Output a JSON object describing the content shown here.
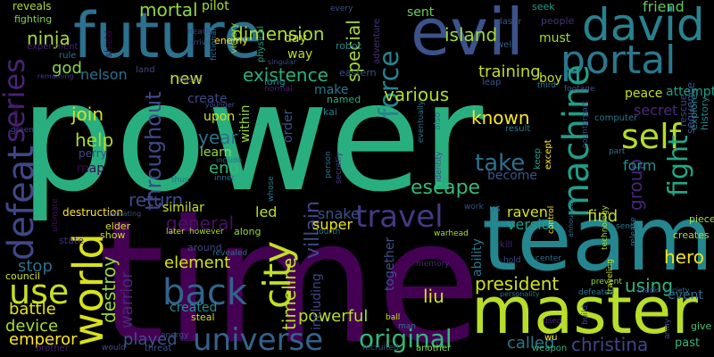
{
  "words": [
    {
      "text": "power",
      "color": "#29af7f"
    },
    {
      "text": "time",
      "color": "#440154"
    },
    {
      "text": "future",
      "color": "#2c718e"
    },
    {
      "text": "evil",
      "color": "#3b528b"
    },
    {
      "text": "team",
      "color": "#24868e"
    },
    {
      "text": "master",
      "color": "#b8de29"
    },
    {
      "text": "david",
      "color": "#26828e"
    },
    {
      "text": "portal",
      "color": "#2a788e"
    },
    {
      "text": "series",
      "color": "#482374"
    },
    {
      "text": "defeat",
      "color": "#404688"
    },
    {
      "text": "world",
      "color": "#d8e219"
    },
    {
      "text": "travel",
      "color": "#443983"
    },
    {
      "text": "back",
      "color": "#33638d"
    },
    {
      "text": "universe",
      "color": "#33638d"
    },
    {
      "text": "city",
      "color": "#c2df23"
    },
    {
      "text": "use",
      "color": "#c8e020"
    },
    {
      "text": "machine",
      "color": "#1f9e89"
    },
    {
      "text": "self",
      "color": "#b2dd2d"
    },
    {
      "text": "fight",
      "color": "#22a884"
    },
    {
      "text": "force",
      "color": "#26828e"
    },
    {
      "text": "original",
      "color": "#32b67a"
    },
    {
      "text": "take",
      "color": "#2c718e"
    },
    {
      "text": "mortal",
      "color": "#8fd744"
    },
    {
      "text": "dimension",
      "color": "#a5db36"
    },
    {
      "text": "existence",
      "color": "#29af7f"
    },
    {
      "text": "island",
      "color": "#a0da39"
    },
    {
      "text": "special",
      "color": "#a2da37"
    },
    {
      "text": "ninja",
      "color": "#a8db34"
    },
    {
      "text": "god",
      "color": "#8bd646"
    },
    {
      "text": "throughout",
      "color": "#3e4989"
    },
    {
      "text": "new",
      "color": "#c8e020"
    },
    {
      "text": "join",
      "color": "#d2e21b"
    },
    {
      "text": "help",
      "color": "#a8db34"
    },
    {
      "text": "known",
      "color": "#fde725"
    },
    {
      "text": "escape",
      "color": "#35b779"
    },
    {
      "text": "group",
      "color": "#482677"
    },
    {
      "text": "various",
      "color": "#addc30"
    },
    {
      "text": "timeline",
      "color": "#bddf26"
    },
    {
      "text": "villain",
      "color": "#3e4989"
    },
    {
      "text": "general",
      "color": "#471063"
    },
    {
      "text": "return",
      "color": "#3e4989"
    },
    {
      "text": "president",
      "color": "#d0e11c"
    },
    {
      "text": "liu",
      "color": "#d2e21b"
    },
    {
      "text": "christina",
      "color": "#3f4788"
    },
    {
      "text": "called",
      "color": "#2a788e"
    },
    {
      "text": "played",
      "color": "#3b528b"
    },
    {
      "text": "emperor",
      "color": "#fde725"
    },
    {
      "text": "battle",
      "color": "#e2e418"
    },
    {
      "text": "device",
      "color": "#a8db34"
    },
    {
      "text": "stop",
      "color": "#2e6f8e"
    },
    {
      "text": "destroy",
      "color": "#95d840"
    },
    {
      "text": "warrior",
      "color": "#482878"
    },
    {
      "text": "element",
      "color": "#d5e21a"
    },
    {
      "text": "hero",
      "color": "#f1e51d"
    },
    {
      "text": "using",
      "color": "#35b779"
    },
    {
      "text": "find",
      "color": "#c2df23"
    },
    {
      "text": "powerful",
      "color": "#b5de2b"
    },
    {
      "text": "training",
      "color": "#c0df25"
    },
    {
      "text": "year",
      "color": "#2d708e"
    },
    {
      "text": "end",
      "color": "#35b779"
    },
    {
      "text": "learn",
      "color": "#95d840"
    },
    {
      "text": "create",
      "color": "#3e4989"
    },
    {
      "text": "nelson",
      "color": "#2d708e"
    },
    {
      "text": "form",
      "color": "#21908d"
    },
    {
      "text": "raven",
      "color": "#d5e21a"
    },
    {
      "text": "version",
      "color": "#1f9e89"
    },
    {
      "text": "snake",
      "color": "#3b528b"
    },
    {
      "text": "super",
      "color": "#e7e419"
    },
    {
      "text": "led",
      "color": "#bddf26"
    },
    {
      "text": "secret",
      "color": "#482878"
    },
    {
      "text": "sequence",
      "color": "#3b528b"
    },
    {
      "text": "peace",
      "color": "#c2df23"
    },
    {
      "text": "attempt",
      "color": "#1fa188"
    },
    {
      "text": "boy",
      "color": "#bddf26"
    },
    {
      "text": "must",
      "color": "#a2da37"
    },
    {
      "text": "sent",
      "color": "#6ccd5a"
    },
    {
      "text": "friend",
      "color": "#5ec962"
    },
    {
      "text": "make",
      "color": "#2a788e"
    },
    {
      "text": "order",
      "color": "#3b528b"
    },
    {
      "text": "day",
      "color": "#bddf26"
    },
    {
      "text": "way",
      "color": "#b8de29"
    },
    {
      "text": "event",
      "color": "#2e6f8e"
    },
    {
      "text": "similar",
      "color": "#c8e020"
    },
    {
      "text": "created",
      "color": "#21908d"
    },
    {
      "text": "including",
      "color": "#3f4788"
    },
    {
      "text": "together",
      "color": "#3b528b"
    },
    {
      "text": "ability",
      "color": "#2a788e"
    },
    {
      "text": "become",
      "color": "#3b528b"
    },
    {
      "text": "upon",
      "color": "#d2e21b"
    },
    {
      "text": "within",
      "color": "#95d840"
    },
    {
      "text": "reveals",
      "color": "#a8db34"
    },
    {
      "text": "fighting",
      "color": "#7fd34e"
    },
    {
      "text": "pilot",
      "color": "#a8db34"
    },
    {
      "text": "seek",
      "color": "#1f9e89"
    },
    {
      "text": "people",
      "color": "#46327e"
    },
    {
      "text": "rescue",
      "color": "#414487"
    },
    {
      "text": "explores",
      "color": "#277f8e"
    },
    {
      "text": "history",
      "color": "#24868e"
    },
    {
      "text": "give",
      "color": "#4ac16d"
    },
    {
      "text": "past",
      "color": "#32b67a"
    },
    {
      "text": "piece",
      "color": "#a8db34"
    },
    {
      "text": "creates",
      "color": "#addc30"
    },
    {
      "text": "laser",
      "color": "#3b528b"
    },
    {
      "text": "well",
      "color": "#33638d"
    },
    {
      "text": "robot",
      "color": "#26828e"
    },
    {
      "text": "eastern",
      "color": "#3b528b"
    },
    {
      "text": "kai",
      "color": "#2a788e"
    },
    {
      "text": "named",
      "color": "#29af7f"
    },
    {
      "text": "long",
      "color": "#26828e"
    },
    {
      "text": "normal",
      "color": "#482173"
    },
    {
      "text": "enemy",
      "color": "#fde725"
    },
    {
      "text": "victory",
      "color": "#8fd744"
    },
    {
      "text": "shield",
      "color": "#440154"
    },
    {
      "text": "experiment",
      "color": "#482374"
    },
    {
      "text": "rule",
      "color": "#2c718e"
    },
    {
      "text": "land",
      "color": "#414487"
    },
    {
      "text": "based",
      "color": "#3e4989"
    },
    {
      "text": "physical",
      "color": "#1fa188"
    },
    {
      "text": "adventure",
      "color": "#46327e"
    },
    {
      "text": "every",
      "color": "#3b528b"
    },
    {
      "text": "nearly",
      "color": "#433e85"
    },
    {
      "text": "fictional",
      "color": "#2e6f8e"
    },
    {
      "text": "remaining",
      "color": "#443983"
    },
    {
      "text": "green",
      "color": "#3f4788"
    },
    {
      "text": "reappears",
      "color": "#471063"
    },
    {
      "text": "map",
      "color": "#440154"
    },
    {
      "text": "perry",
      "color": "#3e4989"
    },
    {
      "text": "destruction",
      "color": "#fde725"
    },
    {
      "text": "defeating",
      "color": "#3b528b"
    },
    {
      "text": "elder",
      "color": "#d2e21b"
    },
    {
      "text": "show",
      "color": "#c2df23"
    },
    {
      "text": "state",
      "color": "#472d7b"
    },
    {
      "text": "ultimate",
      "color": "#471063"
    },
    {
      "text": "council",
      "color": "#d2e21b"
    },
    {
      "text": "brother",
      "color": "#482173"
    },
    {
      "text": "would",
      "color": "#3b528b"
    },
    {
      "text": "threat",
      "color": "#3b528b"
    },
    {
      "text": "around",
      "color": "#3f4788"
    },
    {
      "text": "steal",
      "color": "#d2e21b"
    },
    {
      "text": "revealed",
      "color": "#2d708e"
    },
    {
      "text": "energy",
      "color": "#3b528b"
    },
    {
      "text": "later",
      "color": "#c8e020"
    },
    {
      "text": "however",
      "color": "#a8db34"
    },
    {
      "text": "along",
      "color": "#95d840"
    },
    {
      "text": "fourth",
      "color": "#2a788e"
    },
    {
      "text": "recruited",
      "color": "#3b528b"
    },
    {
      "text": "another",
      "color": "#8fd744"
    },
    {
      "text": "memory",
      "color": "#482878"
    },
    {
      "text": "warhead",
      "color": "#a8db34"
    },
    {
      "text": "ball",
      "color": "#c8e020"
    },
    {
      "text": "man",
      "color": "#2a788e"
    },
    {
      "text": "person",
      "color": "#2e6f8e"
    },
    {
      "text": "secretly",
      "color": "#433e85"
    },
    {
      "text": "also",
      "color": "#2c718e"
    },
    {
      "text": "identity",
      "color": "#3e4989"
    },
    {
      "text": "work",
      "color": "#3b528b"
    },
    {
      "text": "us",
      "color": "#2c718e"
    },
    {
      "text": "kill",
      "color": "#482374"
    },
    {
      "text": "hold",
      "color": "#3e4989"
    },
    {
      "text": "personality",
      "color": "#2e6f8e"
    },
    {
      "text": "wu",
      "color": "#fde725"
    },
    {
      "text": "weapon",
      "color": "#32b67a"
    },
    {
      "text": "used",
      "color": "#482374"
    },
    {
      "text": "build",
      "color": "#3e4989"
    },
    {
      "text": "result",
      "color": "#2a788e"
    },
    {
      "text": "leap",
      "color": "#3b528b"
    },
    {
      "text": "eventually",
      "color": "#2c718e"
    },
    {
      "text": "control",
      "color": "#fde725"
    },
    {
      "text": "announces",
      "color": "#2e6f8e"
    },
    {
      "text": "except",
      "color": "#fde725"
    },
    {
      "text": "keep",
      "color": "#1f9e89"
    },
    {
      "text": "third",
      "color": "#2a788e"
    },
    {
      "text": "counterpart",
      "color": "#3e4989"
    },
    {
      "text": "footage",
      "color": "#3b528b"
    },
    {
      "text": "computer",
      "color": "#2a788e"
    },
    {
      "text": "part",
      "color": "#2c718e"
    },
    {
      "text": "release",
      "color": "#2e6f8e"
    },
    {
      "text": "technology",
      "color": "#a8db34"
    },
    {
      "text": "sends",
      "color": "#2a788e"
    },
    {
      "text": "traveling",
      "color": "#c8e020"
    },
    {
      "text": "prevent",
      "color": "#8fd744"
    },
    {
      "text": "black",
      "color": "#3b528b"
    },
    {
      "text": "defeated",
      "color": "#2a788e"
    },
    {
      "text": "center",
      "color": "#2e6f8e"
    },
    {
      "text": "society",
      "color": "#2e6f8e"
    },
    {
      "text": "army",
      "color": "#3e4989"
    },
    {
      "text": "younger",
      "color": "#3b528b"
    },
    {
      "text": "include",
      "color": "#2e6f8e"
    },
    {
      "text": "inner",
      "color": "#2c718e"
    },
    {
      "text": "thus",
      "color": "#2c718e"
    },
    {
      "text": "whose",
      "color": "#2a788e"
    },
    {
      "text": "arrive",
      "color": "#3b528b"
    },
    {
      "text": "singular",
      "color": "#3e4989"
    }
  ]
}
